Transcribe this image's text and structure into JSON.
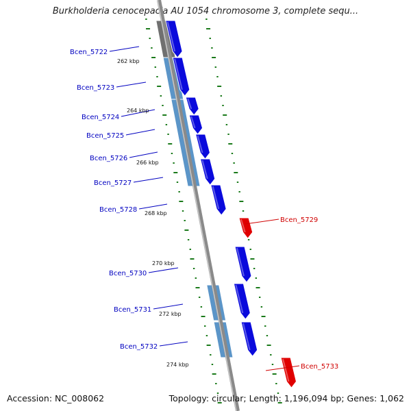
{
  "title": "Burkholderia cenocepacia AU 1054 chromosome 3, complete sequ...",
  "footer": {
    "accession": "Accession: NC_008062",
    "summary": "Topology: circular; Length: 1,196,094 bp; Genes: 1,062"
  },
  "colors": {
    "forward_gene": "#0a0adc",
    "reverse_gene": "#e00000",
    "forward_label": "#0000c0",
    "reverse_label": "#d00000",
    "block_light": "#5b95c8",
    "block_dark": "#707070",
    "backbone": "#8a8a8a",
    "tick": "#1a7a1a"
  },
  "genes": [
    {
      "name": "Bcen_5722",
      "strand": "+"
    },
    {
      "name": "Bcen_5723",
      "strand": "+"
    },
    {
      "name": "Bcen_5724",
      "strand": "+"
    },
    {
      "name": "Bcen_5725",
      "strand": "+"
    },
    {
      "name": "Bcen_5726",
      "strand": "+"
    },
    {
      "name": "Bcen_5727",
      "strand": "+"
    },
    {
      "name": "Bcen_5728",
      "strand": "+"
    },
    {
      "name": "Bcen_5729",
      "strand": "-"
    },
    {
      "name": "Bcen_5730",
      "strand": "+"
    },
    {
      "name": "Bcen_5731",
      "strand": "+"
    },
    {
      "name": "Bcen_5732",
      "strand": "+"
    },
    {
      "name": "Bcen_5733",
      "strand": "-"
    }
  ],
  "ruler_labels": [
    "262 kbp",
    "264 kbp",
    "266 kbp",
    "268 kbp",
    "270 kbp",
    "272 kbp",
    "274 kbp"
  ]
}
